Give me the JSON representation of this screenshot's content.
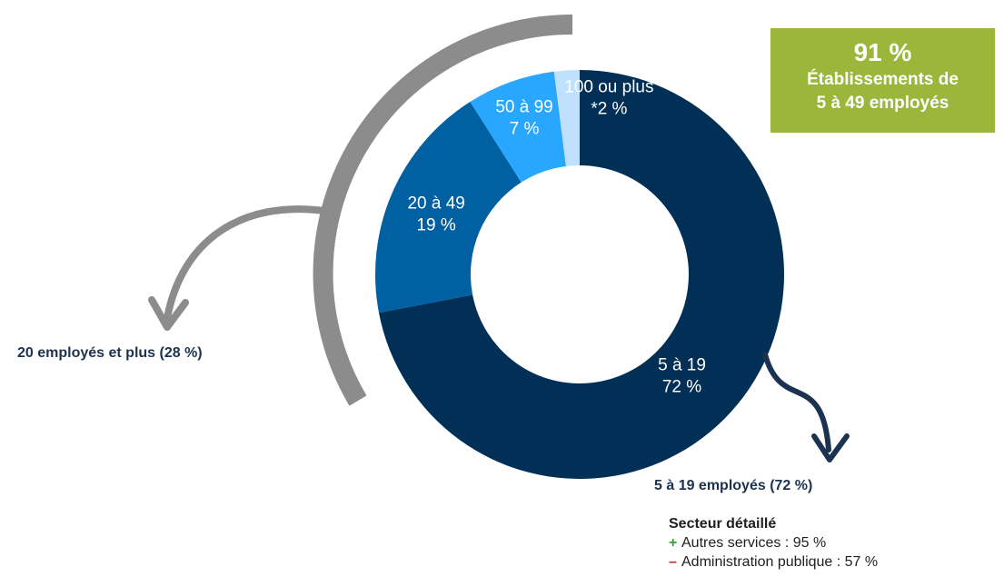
{
  "chart_data": {
    "type": "pie",
    "categories": [
      "5 à 19",
      "20 à 49",
      "50 à 99",
      "100 ou plus"
    ],
    "values": [
      72,
      19,
      7,
      2
    ],
    "value_labels": [
      "72 %",
      "19 %",
      "7 %",
      "*2 %"
    ],
    "colors": [
      "#012f55",
      "#0160a1",
      "#29a7ff",
      "#bfe1ff"
    ],
    "title": "",
    "donut": true,
    "annotations": {
      "group_left": "20 employés et plus (28 %)",
      "group_right": "5 à 19 employés (72 %)"
    }
  },
  "callout": {
    "value": "91 %",
    "line1": "Établissements de",
    "line2": "5 à 49 employés"
  },
  "detail": {
    "title": "Secteur détaillé",
    "plus_symbol": "+",
    "minus_symbol": "–",
    "items": [
      {
        "label": "Autres services : 95 %"
      },
      {
        "label": "Administration publique : 57 %"
      }
    ]
  },
  "colors": {
    "arc_gray": "#8c8c8c",
    "callout_green": "#9ab73b",
    "arrow_navy": "#1b3350"
  }
}
